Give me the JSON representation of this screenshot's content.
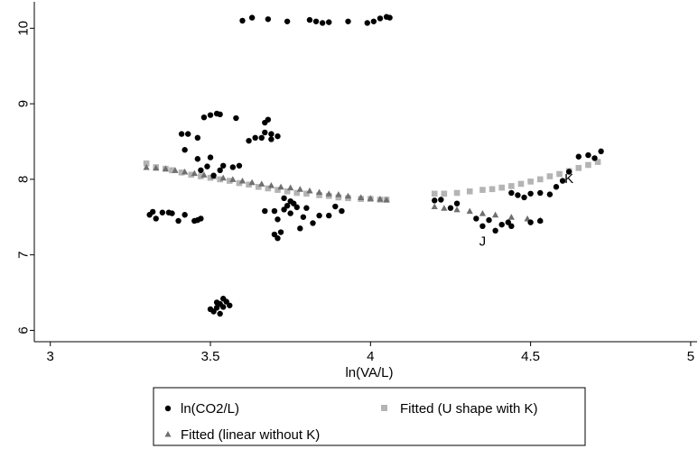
{
  "chart_data": {
    "type": "scatter",
    "xlabel": "ln(VA/L)",
    "ylabel": "",
    "xlim": [
      2.95,
      5.02
    ],
    "ylim": [
      5.85,
      10.35
    ],
    "xticks": [
      3,
      3.5,
      4,
      4.5,
      5
    ],
    "yticks": [
      6,
      7,
      8,
      9,
      10
    ],
    "x_tick_labels": [
      "3",
      "3.5",
      "4",
      "4.5",
      "5"
    ],
    "y_tick_labels": [
      "6",
      "7",
      "8",
      "9",
      "10"
    ],
    "grid": false,
    "legend_position": "bottom",
    "annotations": [
      {
        "text": "J",
        "x": 4.35,
        "y": 7.12
      },
      {
        "text": "K",
        "x": 4.62,
        "y": 7.95
      }
    ],
    "series": [
      {
        "name": "ln(CO2/L)",
        "marker": "circle",
        "color": "#000000",
        "points": [
          [
            3.6,
            10.1
          ],
          [
            3.63,
            10.14
          ],
          [
            3.68,
            10.12
          ],
          [
            3.74,
            10.09
          ],
          [
            3.81,
            10.11
          ],
          [
            3.83,
            10.09
          ],
          [
            3.85,
            10.07
          ],
          [
            3.87,
            10.08
          ],
          [
            3.93,
            10.09
          ],
          [
            3.99,
            10.07
          ],
          [
            4.01,
            10.09
          ],
          [
            4.03,
            10.13
          ],
          [
            4.05,
            10.15
          ],
          [
            4.06,
            10.14
          ],
          [
            3.41,
            8.6
          ],
          [
            3.43,
            8.6
          ],
          [
            3.46,
            8.55
          ],
          [
            3.48,
            8.82
          ],
          [
            3.5,
            8.85
          ],
          [
            3.52,
            8.87
          ],
          [
            3.53,
            8.86
          ],
          [
            3.58,
            8.81
          ],
          [
            3.62,
            8.51
          ],
          [
            3.64,
            8.55
          ],
          [
            3.67,
            8.75
          ],
          [
            3.68,
            8.79
          ],
          [
            3.67,
            8.62
          ],
          [
            3.69,
            8.6
          ],
          [
            3.66,
            8.55
          ],
          [
            3.69,
            8.53
          ],
          [
            3.71,
            8.57
          ],
          [
            3.42,
            8.39
          ],
          [
            3.46,
            8.27
          ],
          [
            3.47,
            8.12
          ],
          [
            3.49,
            8.17
          ],
          [
            3.5,
            8.29
          ],
          [
            3.51,
            8.05
          ],
          [
            3.53,
            8.12
          ],
          [
            3.54,
            8.18
          ],
          [
            3.57,
            8.16
          ],
          [
            3.59,
            8.18
          ],
          [
            3.31,
            7.53
          ],
          [
            3.32,
            7.57
          ],
          [
            3.33,
            7.48
          ],
          [
            3.35,
            7.56
          ],
          [
            3.37,
            7.56
          ],
          [
            3.38,
            7.55
          ],
          [
            3.4,
            7.45
          ],
          [
            3.42,
            7.53
          ],
          [
            3.45,
            7.45
          ],
          [
            3.46,
            7.46
          ],
          [
            3.47,
            7.48
          ],
          [
            3.67,
            7.58
          ],
          [
            3.7,
            7.27
          ],
          [
            3.71,
            7.22
          ],
          [
            3.72,
            7.3
          ],
          [
            3.73,
            7.6
          ],
          [
            3.74,
            7.65
          ],
          [
            3.75,
            7.55
          ],
          [
            3.76,
            7.68
          ],
          [
            3.7,
            7.58
          ],
          [
            3.73,
            7.75
          ],
          [
            3.75,
            7.71
          ],
          [
            3.77,
            7.63
          ],
          [
            3.78,
            7.35
          ],
          [
            3.79,
            7.5
          ],
          [
            3.8,
            7.62
          ],
          [
            3.82,
            7.42
          ],
          [
            3.84,
            7.52
          ],
          [
            3.87,
            7.52
          ],
          [
            3.89,
            7.64
          ],
          [
            3.91,
            7.58
          ],
          [
            3.71,
            7.47
          ],
          [
            3.5,
            6.28
          ],
          [
            3.51,
            6.25
          ],
          [
            3.52,
            6.3
          ],
          [
            3.53,
            6.35
          ],
          [
            3.54,
            6.42
          ],
          [
            3.52,
            6.37
          ],
          [
            3.53,
            6.22
          ],
          [
            3.55,
            6.38
          ],
          [
            3.54,
            6.31
          ],
          [
            3.56,
            6.33
          ],
          [
            4.2,
            7.72
          ],
          [
            4.22,
            7.73
          ],
          [
            4.25,
            7.62
          ],
          [
            4.27,
            7.68
          ],
          [
            4.33,
            7.48
          ],
          [
            4.35,
            7.38
          ],
          [
            4.37,
            7.46
          ],
          [
            4.39,
            7.32
          ],
          [
            4.41,
            7.4
          ],
          [
            4.43,
            7.43
          ],
          [
            4.44,
            7.38
          ],
          [
            4.5,
            7.43
          ],
          [
            4.53,
            7.45
          ],
          [
            4.44,
            7.82
          ],
          [
            4.46,
            7.79
          ],
          [
            4.48,
            7.76
          ],
          [
            4.5,
            7.81
          ],
          [
            4.53,
            7.82
          ],
          [
            4.56,
            7.8
          ],
          [
            4.58,
            7.9
          ],
          [
            4.6,
            7.98
          ],
          [
            4.62,
            8.1
          ],
          [
            4.65,
            8.3
          ],
          [
            4.68,
            8.32
          ],
          [
            4.7,
            8.28
          ],
          [
            4.72,
            8.37
          ]
        ]
      },
      {
        "name": "Fitted (U shape with K)",
        "marker": "square",
        "color": "#b4b4b4",
        "points": [
          [
            3.3,
            8.21
          ],
          [
            3.33,
            8.16
          ],
          [
            3.36,
            8.14
          ],
          [
            3.38,
            8.12
          ],
          [
            3.41,
            8.09
          ],
          [
            3.44,
            8.06
          ],
          [
            3.47,
            8.04
          ],
          [
            3.5,
            8.02
          ],
          [
            3.53,
            8.0
          ],
          [
            3.56,
            7.98
          ],
          [
            3.59,
            7.95
          ],
          [
            3.62,
            7.93
          ],
          [
            3.65,
            7.9
          ],
          [
            3.68,
            7.88
          ],
          [
            3.71,
            7.86
          ],
          [
            3.74,
            7.84
          ],
          [
            3.77,
            7.82
          ],
          [
            3.8,
            7.81
          ],
          [
            3.84,
            7.79
          ],
          [
            3.87,
            7.78
          ],
          [
            3.9,
            7.76
          ],
          [
            3.93,
            7.75
          ],
          [
            3.97,
            7.74
          ],
          [
            4.0,
            7.74
          ],
          [
            4.03,
            7.73
          ],
          [
            4.05,
            7.73
          ],
          [
            4.2,
            7.81
          ],
          [
            4.23,
            7.81
          ],
          [
            4.27,
            7.82
          ],
          [
            4.31,
            7.84
          ],
          [
            4.35,
            7.86
          ],
          [
            4.38,
            7.87
          ],
          [
            4.41,
            7.89
          ],
          [
            4.44,
            7.91
          ],
          [
            4.47,
            7.94
          ],
          [
            4.5,
            7.97
          ],
          [
            4.53,
            8.0
          ],
          [
            4.56,
            8.04
          ],
          [
            4.59,
            8.07
          ],
          [
            4.62,
            8.11
          ],
          [
            4.65,
            8.15
          ],
          [
            4.68,
            8.19
          ],
          [
            4.71,
            8.23
          ]
        ]
      },
      {
        "name": "Fitted (linear without K)",
        "marker": "triangle",
        "color": "#6f6f6f",
        "points": [
          [
            3.3,
            8.16
          ],
          [
            3.33,
            8.15
          ],
          [
            3.36,
            8.14
          ],
          [
            3.39,
            8.12
          ],
          [
            3.42,
            8.1
          ],
          [
            3.45,
            8.08
          ],
          [
            3.48,
            8.06
          ],
          [
            3.51,
            8.04
          ],
          [
            3.54,
            8.02
          ],
          [
            3.57,
            8.0
          ],
          [
            3.6,
            7.98
          ],
          [
            3.63,
            7.96
          ],
          [
            3.66,
            7.94
          ],
          [
            3.69,
            7.92
          ],
          [
            3.72,
            7.9
          ],
          [
            3.75,
            7.89
          ],
          [
            3.78,
            7.87
          ],
          [
            3.81,
            7.85
          ],
          [
            3.84,
            7.83
          ],
          [
            3.87,
            7.81
          ],
          [
            3.9,
            7.8
          ],
          [
            3.93,
            7.78
          ],
          [
            3.97,
            7.76
          ],
          [
            4.0,
            7.75
          ],
          [
            4.03,
            7.74
          ],
          [
            4.05,
            7.73
          ],
          [
            4.2,
            7.64
          ],
          [
            4.23,
            7.62
          ],
          [
            4.27,
            7.6
          ],
          [
            4.31,
            7.58
          ],
          [
            4.35,
            7.55
          ],
          [
            4.39,
            7.53
          ],
          [
            4.44,
            7.5
          ],
          [
            4.49,
            7.48
          ],
          [
            4.53,
            7.46
          ]
        ]
      }
    ]
  }
}
